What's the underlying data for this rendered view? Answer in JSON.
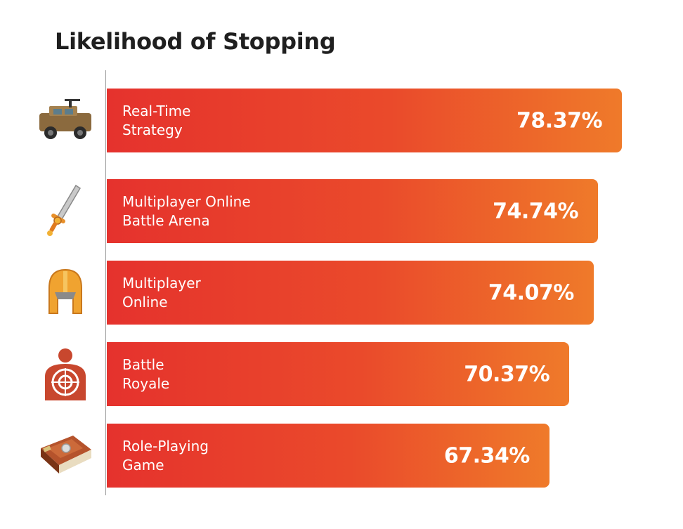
{
  "chart_data": {
    "type": "bar",
    "orientation": "horizontal",
    "title": "Likelihood of Stopping",
    "categories": [
      "Real-Time\nStrategy",
      "Multiplayer Online\nBattle Arena",
      "Multiplayer\nOnline",
      "Battle\nRoyale",
      "Role-Playing\nGame"
    ],
    "values": [
      78.37,
      74.74,
      74.07,
      70.37,
      67.34
    ],
    "value_labels": [
      "78.37%",
      "74.74%",
      "74.07%",
      "70.37%",
      "67.34%"
    ],
    "icons": [
      "armored-vehicle-icon",
      "sword-icon",
      "helmet-icon",
      "target-silhouette-icon",
      "spellbook-icon"
    ],
    "bar_color_start": "#e5322d",
    "bar_color_end": "#ef7a2a",
    "grid": false,
    "legend": "none"
  }
}
